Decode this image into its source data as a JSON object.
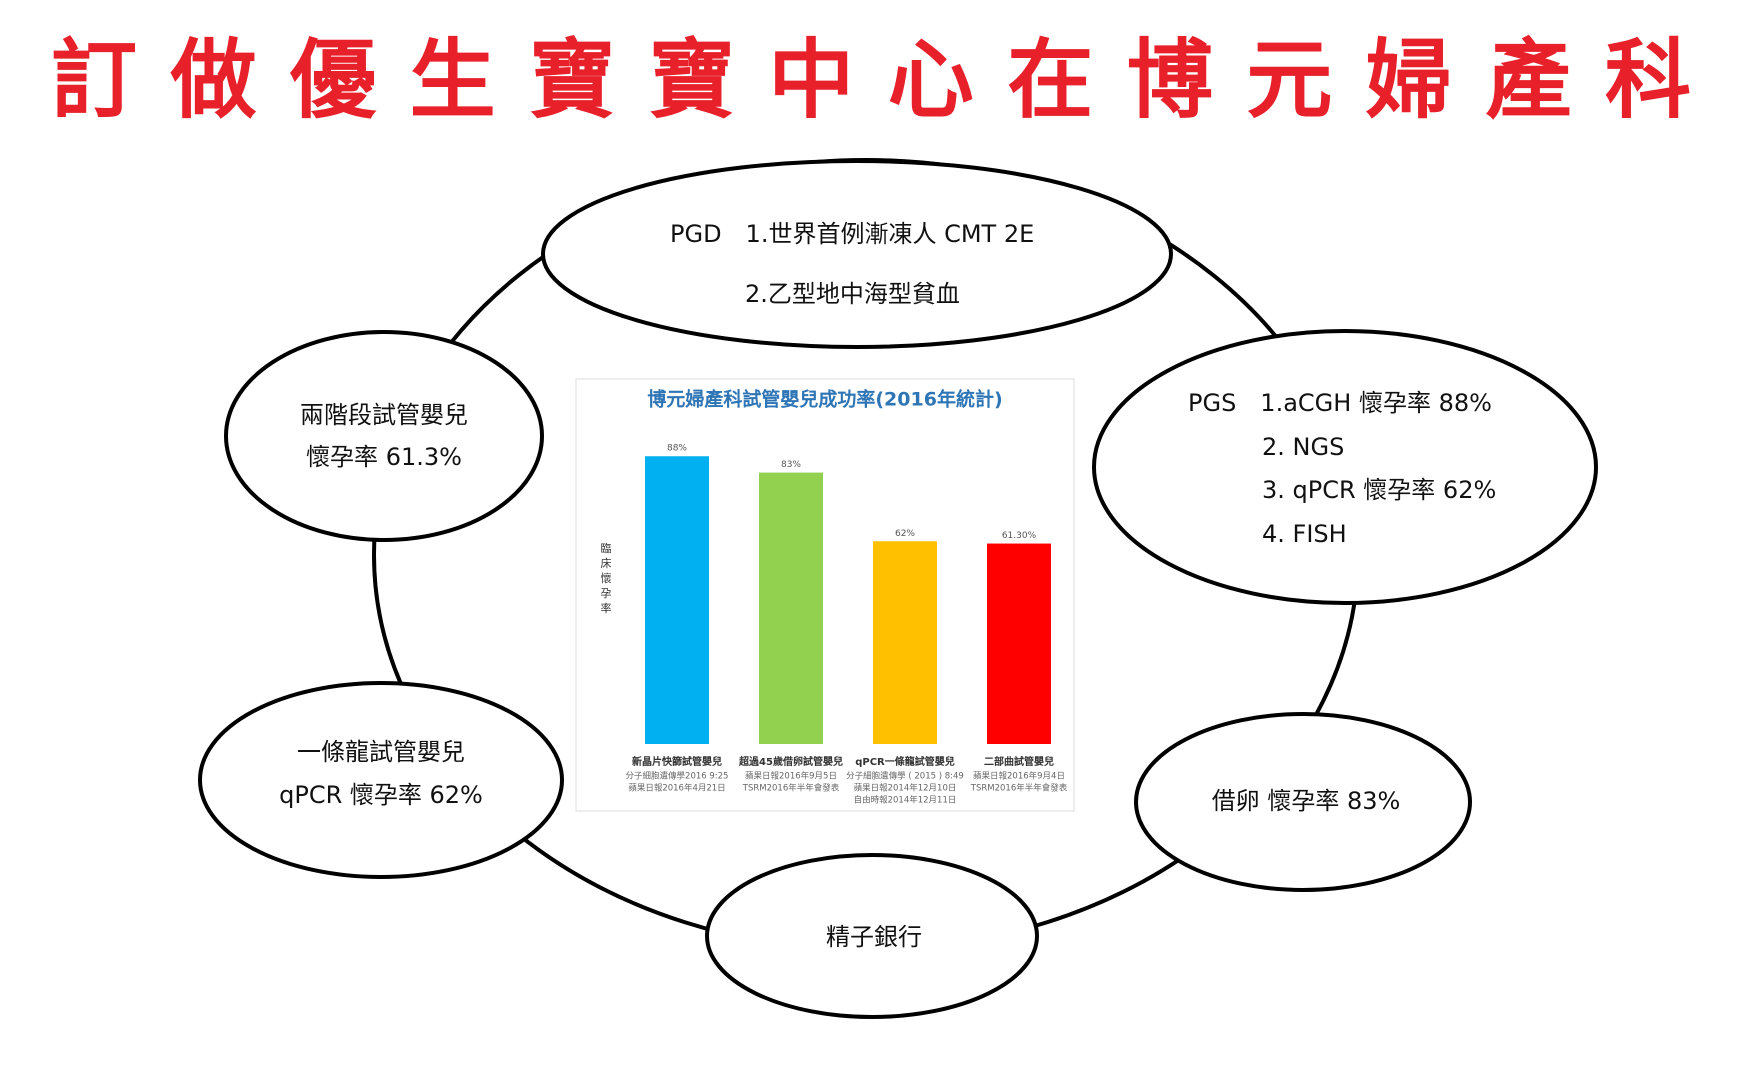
{
  "title": "訂做優生寶寶中心在博元婦產科",
  "nodes": [
    {
      "lines": [
        "PGD　1.世界首例漸凍人 CMT 2E",
        "2.乙型地中海型貧血"
      ]
    },
    {
      "lines": [
        "兩階段試管嬰兒",
        "懷孕率 61.3%"
      ]
    },
    {
      "lines": [
        "PGS　1.aCGH  懷孕率 88%",
        "2. NGS",
        "3. qPCR  懷孕率 62%",
        "4. FISH"
      ]
    },
    {
      "lines": [
        "一條龍試管嬰兒",
        "qPCR  懷孕率 62%"
      ]
    },
    {
      "lines": [
        "借卵  懷孕率 83%"
      ]
    },
    {
      "lines": [
        "精子銀行"
      ]
    }
  ],
  "chart_data": {
    "type": "bar",
    "title": "博元婦產科試管嬰兒成功率(2016年統計)",
    "y_label": "臨床懷孕率",
    "categories": [
      "新晶片快篩試管嬰兒",
      "超過45歲借卵試管嬰兒",
      "qPCR一條龍試管嬰兒",
      "二部曲試管嬰兒"
    ],
    "category_notes": [
      [
        "分子細胞遺傳學2016 9:25",
        "蘋果日報2016年4月21日"
      ],
      [
        "蘋果日報2016年9月5日",
        "TSRM2016年半年會發表"
      ],
      [
        "分子細胞遺傳學 ( 2015 ) 8:49",
        "蘋果日報2014年12月10日",
        "自由時報2014年12月11日"
      ],
      [
        "蘋果日報2016年9月4日",
        "TSRM2016年半年會發表"
      ]
    ],
    "values": [
      88,
      83,
      62,
      61.3
    ],
    "value_labels": [
      "88%",
      "83%",
      "62%",
      "61.30%"
    ],
    "colors": [
      "#00b0f0",
      "#92d050",
      "#ffc000",
      "#ff0000"
    ],
    "ylim": [
      0,
      100
    ]
  }
}
